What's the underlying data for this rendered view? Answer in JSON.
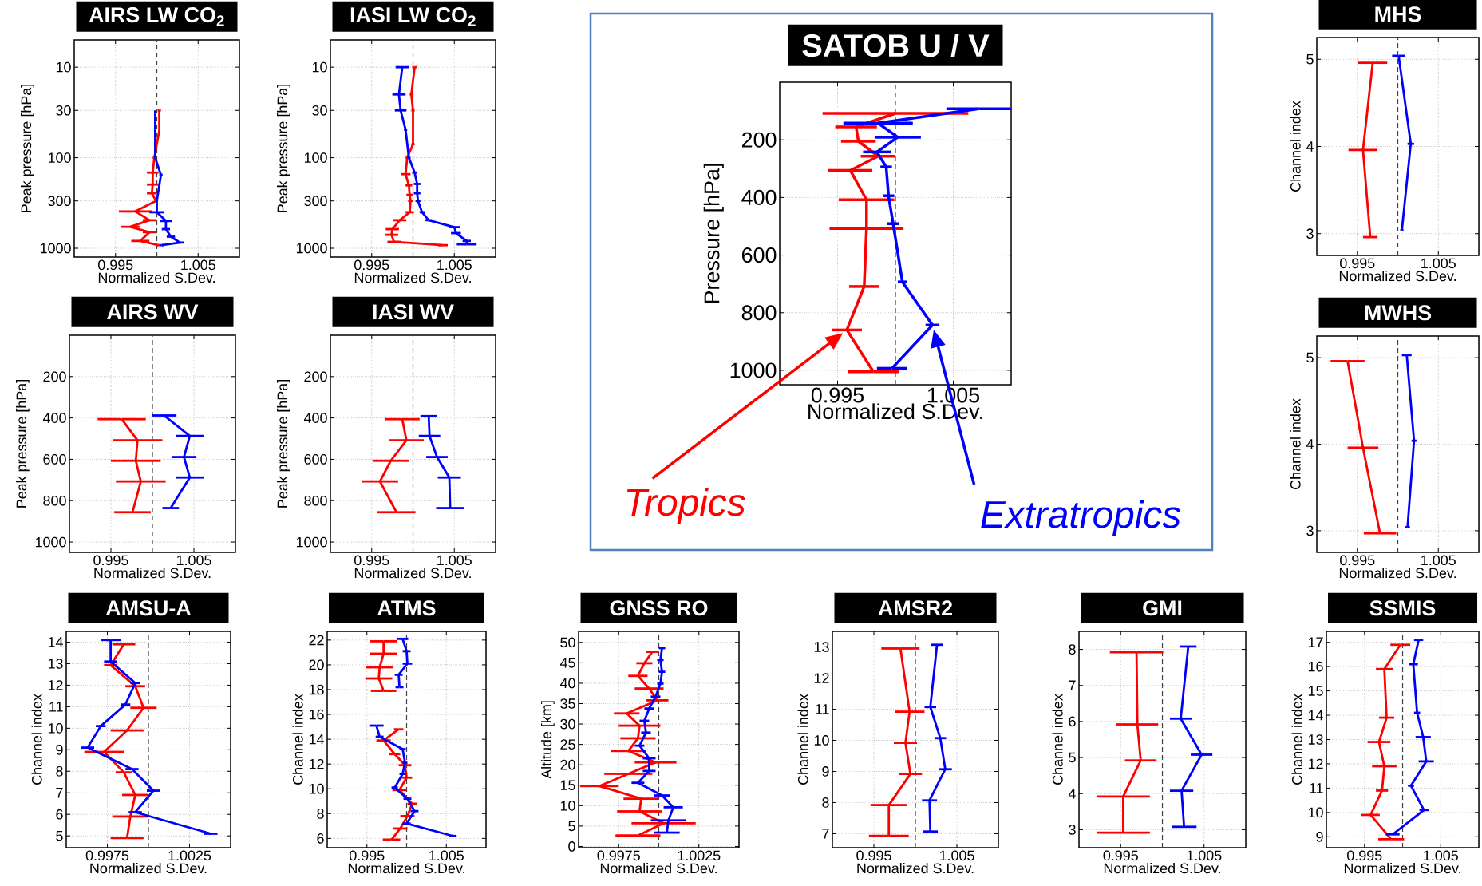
{
  "chart_data": [
    {
      "type": "line",
      "title": "AIRS LW CO$_{2}$",
      "xlabel": "Normalized S.Dev.",
      "ylabel": "Peak pressure [hPa]",
      "xlim": [
        0.99,
        1.01
      ],
      "xticks": [
        0.995,
        1.005
      ],
      "ylim": [
        1250,
        5
      ],
      "yticks": [
        10,
        30,
        100,
        300,
        1000
      ],
      "log": "y",
      "grid": true,
      "ref_lines": [
        {
          "axis": "x",
          "value": 1.0,
          "line_style": "dashed"
        }
      ],
      "series": [
        {
          "color": "#ff0000",
          "x": [
            1.0003,
            1.0003,
            0.9997,
            0.9995,
            0.9995,
            0.9994,
            0.9999,
            0.9974,
            0.9991,
            0.9968,
            0.9991,
            0.998,
            1.0002
          ],
          "values": [
            30,
            50,
            100,
            146,
            198,
            247,
            300,
            392,
            490,
            580,
            665,
            830,
            925
          ],
          "xerrors": [
            0.0002,
            null,
            0.0002,
            0.0007,
            0.0007,
            0.0006,
            null,
            0.002,
            0.0008,
            0.0011,
            0.0008,
            0.0011,
            0.0002
          ]
        },
        {
          "color": "#0000ff",
          "x": [
            0.9998,
            0.9998,
            1.0005,
            1.0,
            1.0,
            1.0011,
            1.0011,
            1.0017,
            1.0028,
            1.0006
          ],
          "values": [
            30,
            100,
            155,
            300,
            400,
            500,
            615,
            745,
            865,
            925
          ],
          "xerrors": [
            null,
            null,
            0.0002,
            null,
            0.0009,
            0.0007,
            0.0005,
            0.0005,
            0.0005,
            0.0002
          ]
        }
      ]
    },
    {
      "type": "line",
      "title": "IASI LW CO$_{2}$",
      "xlabel": "Normalized S.Dev.",
      "ylabel": "Peak pressure [hPa]",
      "xlim": [
        0.99,
        1.01
      ],
      "xticks": [
        0.995,
        1.005
      ],
      "ylim": [
        1250,
        5
      ],
      "yticks": [
        10,
        30,
        100,
        300,
        1000
      ],
      "log": "y",
      "grid": true,
      "ref_lines": [
        {
          "axis": "x",
          "value": 1.0,
          "line_style": "dashed"
        }
      ],
      "series": [
        {
          "color": "#ff0000",
          "x": [
            1.0002,
            0.9998,
            1.0,
            1.0,
            0.9993,
            0.9991,
            0.9995,
            0.9996,
            0.9997,
            0.9996,
            0.9984,
            0.9975,
            0.9974,
            0.9977,
            1.0036
          ],
          "values": [
            10,
            20,
            30,
            71,
            100,
            152,
            202,
            257,
            300,
            400,
            490,
            615,
            710,
            850,
            925
          ],
          "xerrors": [
            0.0003,
            0.0002,
            0.0002,
            0.0002,
            0.0002,
            0.0006,
            0.0004,
            0.0004,
            0.0003,
            0.0005,
            0.0008,
            0.0008,
            0.0008,
            0.0008,
            0.0006
          ]
        },
        {
          "color": "#0000ff",
          "x": [
            0.9987,
            0.9983,
            0.9985,
            0.9991,
            0.9995,
            1.0002,
            1.0005,
            1.0005,
            1.0006,
            1.0011,
            1.0019,
            1.005,
            1.0052,
            1.0065,
            1.0065
          ],
          "values": [
            10,
            20,
            30,
            49,
            100,
            146,
            195,
            247,
            300,
            400,
            490,
            585,
            680,
            830,
            905
          ],
          "xerrors": [
            0.0008,
            0.0008,
            0.0007,
            0.0002,
            0.0002,
            0.0003,
            0.0004,
            0.0004,
            0.0003,
            0.0003,
            0.0004,
            0.0007,
            0.0006,
            0.0005,
            0.0012
          ]
        }
      ]
    },
    {
      "type": "line",
      "title": "AIRS WV",
      "xlabel": "Normalized S.Dev.",
      "ylabel": "Peak pressure [hPa]",
      "xlim": [
        0.99,
        1.01
      ],
      "xticks": [
        0.995,
        1.005
      ],
      "ylim": [
        1050,
        0
      ],
      "yticks": [
        200,
        400,
        600,
        800,
        1000
      ],
      "grid": true,
      "ref_lines": [
        {
          "axis": "x",
          "value": 1.0,
          "line_style": "dashed"
        }
      ],
      "series": [
        {
          "color": "#ff0000",
          "x": [
            0.9963,
            0.9982,
            0.998,
            0.9986,
            0.9976
          ],
          "values": [
            406,
            508,
            607,
            707,
            856
          ],
          "xerrors": [
            0.0029,
            0.003,
            0.003,
            0.003,
            0.0022
          ]
        },
        {
          "color": "#0000ff",
          "x": [
            1.0014,
            1.0045,
            1.0038,
            1.0045,
            1.0022
          ],
          "values": [
            388,
            487,
            589,
            688,
            836
          ],
          "xerrors": [
            0.0015,
            0.0017,
            0.0015,
            0.0017,
            0.001
          ]
        }
      ]
    },
    {
      "type": "line",
      "title": "IASI WV",
      "xlabel": "Normalized S.Dev.",
      "ylabel": "Peak pressure [hPa]",
      "xlim": [
        0.99,
        1.01
      ],
      "xticks": [
        0.995,
        1.005
      ],
      "ylim": [
        1050,
        0
      ],
      "yticks": [
        200,
        400,
        600,
        800,
        1000
      ],
      "grid": true,
      "ref_lines": [
        {
          "axis": "x",
          "value": 1.0,
          "line_style": "dashed"
        }
      ],
      "series": [
        {
          "color": "#ff0000",
          "x": [
            0.9987,
            0.9992,
            0.9973,
            0.996,
            0.998
          ],
          "values": [
            406,
            508,
            607,
            707,
            856
          ],
          "xerrors": [
            0.0021,
            0.0021,
            0.0022,
            0.0022,
            0.0023
          ]
        },
        {
          "color": "#0000ff",
          "x": [
            1.0019,
            1.002,
            1.0029,
            1.0044,
            1.0045
          ],
          "values": [
            391,
            487,
            589,
            688,
            836
          ],
          "xerrors": [
            0.001,
            0.0013,
            0.0013,
            0.0014,
            0.0017
          ]
        }
      ]
    },
    {
      "type": "line",
      "title": "SATOB U / V",
      "xlabel": "Normalized S.Dev.",
      "ylabel": "Pressure [hPa]",
      "xlim": [
        0.99,
        1.01
      ],
      "xticks": [
        0.995,
        1.005
      ],
      "ylim": [
        1050,
        0
      ],
      "yticks": [
        200,
        400,
        600,
        800,
        1000
      ],
      "grid": true,
      "ref_lines": [
        {
          "axis": "x",
          "value": 1.0,
          "line_style": "dashed"
        }
      ],
      "series": [
        {
          "name": "Tropics",
          "color": "#ff0000",
          "x": [
            1.0,
            0.9966,
            0.9968,
            0.9985,
            0.9961,
            0.9975,
            0.9975,
            0.9973,
            0.9958,
            0.9981
          ],
          "values": [
            108,
            155,
            205,
            257,
            306,
            408,
            508,
            709,
            860,
            1005
          ],
          "xerrors": [
            0.0063,
            0.0018,
            0.0015,
            0.0015,
            0.0019,
            0.0024,
            0.0032,
            0.0013,
            0.0013,
            0.0022
          ]
        },
        {
          "name": "Extratropics",
          "color": "#0000ff",
          "x": [
            1.0072,
            0.9985,
            1.0002,
            0.9984,
            0.9992,
            0.9994,
            0.9998,
            1.0006,
            1.0032,
            0.9997
          ],
          "values": [
            92,
            142,
            191,
            242,
            294,
            394,
            491,
            693,
            843,
            993
          ],
          "xerrors": [
            0.0028,
            0.003,
            0.002,
            0.0012,
            0.0005,
            0.0005,
            0.0005,
            0.0004,
            0.0006,
            0.0013
          ]
        }
      ]
    },
    {
      "type": "line",
      "title": "MHS",
      "xlabel": "Normalized S.Dev.",
      "ylabel": "Channel index",
      "xlim": [
        0.99,
        1.01
      ],
      "xticks": [
        0.995,
        1.005
      ],
      "ylim": [
        2.75,
        5.25
      ],
      "yticks": [
        3,
        4,
        5
      ],
      "grid": true,
      "ref_lines": [
        {
          "axis": "x",
          "value": 1.0,
          "line_style": "dashed"
        }
      ],
      "series": [
        {
          "color": "#ff0000",
          "x": [
            0.9969,
            0.9957,
            0.9966
          ],
          "values": [
            4.96,
            3.96,
            2.96
          ],
          "xerrors": [
            0.0018,
            0.0018,
            0.0009
          ]
        },
        {
          "color": "#0000ff",
          "x": [
            1.0001,
            1.0016,
            1.0005
          ],
          "values": [
            5.04,
            4.03,
            3.04
          ],
          "xerrors": [
            0.0008,
            0.0004,
            0.0002
          ]
        }
      ]
    },
    {
      "type": "line",
      "title": "MWHS",
      "xlabel": "Normalized S.Dev.",
      "ylabel": "Channel index",
      "xlim": [
        0.99,
        1.01
      ],
      "xticks": [
        0.995,
        1.005
      ],
      "ylim": [
        2.75,
        5.25
      ],
      "yticks": [
        3,
        4,
        5
      ],
      "grid": true,
      "ref_lines": [
        {
          "axis": "x",
          "value": 1.0,
          "line_style": "dashed"
        }
      ],
      "series": [
        {
          "color": "#ff0000",
          "x": [
            0.9938,
            0.9957,
            0.9978
          ],
          "values": [
            4.96,
            3.96,
            2.97
          ],
          "xerrors": [
            0.0021,
            0.0019,
            0.002
          ]
        },
        {
          "color": "#0000ff",
          "x": [
            1.0011,
            1.002,
            1.0012
          ],
          "values": [
            5.03,
            4.04,
            3.04
          ],
          "xerrors": [
            0.0006,
            0.0003,
            0.0003
          ]
        }
      ]
    },
    {
      "type": "line",
      "title": "AMSU-A",
      "xlabel": "Normalized S.Dev.",
      "ylabel": "Channel index",
      "xlim": [
        0.995,
        1.005
      ],
      "xticks": [
        0.9975,
        1.0025
      ],
      "ylim": [
        4.45,
        14.5
      ],
      "yticks": [
        5,
        6,
        7,
        8,
        9,
        10,
        11,
        12,
        13,
        14
      ],
      "grid": true,
      "ref_lines": [
        {
          "axis": "x",
          "value": 1.0,
          "line_style": "dashed"
        }
      ],
      "series": [
        {
          "color": "#ff0000",
          "x": [
            0.9985,
            0.9977,
            0.9992,
            0.9997,
            0.9987,
            0.9973,
            0.9985,
            0.9992,
            0.9989,
            0.9987
          ],
          "values": [
            13.9,
            12.93,
            11.95,
            10.95,
            9.9,
            8.9,
            7.95,
            6.9,
            5.9,
            4.9
          ],
          "xerrors": [
            0.0007,
            0.0004,
            0.0006,
            0.0008,
            0.001,
            0.0012,
            0.0005,
            0.0008,
            0.0011,
            0.001
          ]
        },
        {
          "color": "#0000ff",
          "x": [
            0.9977,
            0.9977,
            0.9992,
            0.9986,
            0.9971,
            0.9963,
            0.999,
            1.0003,
            0.9992,
            1.0038
          ],
          "values": [
            14.1,
            13.1,
            12.1,
            11.1,
            10.1,
            9.1,
            8.1,
            7.1,
            6.1,
            5.1
          ],
          "xerrors": [
            0.0006,
            0.0004,
            0.0003,
            0.0003,
            0.0003,
            0.0004,
            0.0004,
            0.0004,
            0.0004,
            0.0004
          ]
        }
      ]
    },
    {
      "type": "line",
      "title": "ATMS",
      "xlabel": "Normalized S.Dev.",
      "ylabel": "Channel index",
      "xlim": [
        0.99,
        1.01
      ],
      "xticks": [
        0.995,
        1.005
      ],
      "ylim": [
        5.25,
        22.7
      ],
      "yticks": [
        6,
        8,
        10,
        12,
        14,
        16,
        18,
        20,
        22
      ],
      "grid": true,
      "ref_lines": [
        {
          "axis": "x",
          "value": 1.0,
          "line_style": "dashed"
        }
      ],
      "series": [
        {
          "color": "#ff0000",
          "x": [
            0.9971,
            0.9971,
            0.9966,
            0.9965,
            0.9971,
            null,
            0.999,
            0.9971,
            0.9985,
            0.9998,
            1.0,
            0.9991,
            1.0007,
            1.0001,
            0.9992,
            0.9981
          ],
          "values": [
            21.9,
            20.9,
            19.8,
            18.9,
            17.9,
            null,
            14.8,
            13.9,
            12.8,
            11.9,
            10.9,
            9.9,
            8.8,
            7.8,
            6.8,
            5.9
          ],
          "xerrors": [
            0.0017,
            0.0017,
            0.0017,
            0.0017,
            0.0016,
            null,
            0.0006,
            0.0009,
            0.0007,
            0.0008,
            0.0007,
            0.0009,
            0.0006,
            0.0009,
            0.0009,
            0.0011
          ]
        },
        {
          "color": "#0000ff",
          "x": [
            0.9995,
            1.0,
            1.0001,
            0.999,
            0.9991,
            null,
            0.9962,
            0.9966,
            0.9995,
            0.9998,
            0.9995,
            0.9985,
            1.0001,
            1.001,
            1.0,
            1.0058
          ],
          "values": [
            22.1,
            21.1,
            20.1,
            19.2,
            18.2,
            null,
            15.1,
            14.2,
            13.2,
            12.1,
            11.2,
            10.1,
            9.2,
            8.2,
            7.2,
            6.2
          ],
          "xerrors": [
            0.0007,
            0.0005,
            0.0006,
            0.0005,
            0.0005,
            null,
            0.0009,
            0.0005,
            0.0004,
            0.0003,
            0.0004,
            0.0004,
            0.0005,
            0.0005,
            0.0005,
            0.0005
          ]
        }
      ]
    },
    {
      "type": "line",
      "title": "GNSS RO",
      "xlabel": "Normalized S.Dev.",
      "ylabel": "Altitude [km]",
      "xlim": [
        0.995,
        1.005
      ],
      "xticks": [
        0.9975,
        1.0025
      ],
      "ylim": [
        -0.3,
        52.7
      ],
      "yticks": [
        0,
        5,
        10,
        15,
        20,
        25,
        30,
        35,
        40,
        45,
        50
      ],
      "grid": true,
      "ref_lines": [
        {
          "axis": "x",
          "value": 1.0,
          "line_style": "dashed"
        }
      ],
      "series": [
        {
          "color": "#ff0000",
          "x": [
            0.9996,
            0.9991,
            0.9987,
            0.9994,
            0.9999,
            0.998,
            0.9988,
            0.9987,
            0.9981,
            0.9998,
            0.9981,
            0.9963,
            0.9989,
            0.9988,
            1.0003,
            0.9987
          ],
          "values": [
            47.7,
            44.9,
            41.8,
            38.7,
            35.8,
            32.6,
            29.6,
            26.5,
            23.4,
            20.6,
            17.8,
            14.8,
            11.7,
            8.6,
            5.7,
            2.7
          ],
          "xerrors": [
            0.0004,
            0.0005,
            0.0006,
            0.0009,
            0.0007,
            0.0008,
            0.0013,
            0.0011,
            0.0011,
            0.0013,
            0.0015,
            0.0012,
            0.0011,
            0.0014,
            0.002,
            0.0014
          ]
        },
        {
          "color": "#0000ff",
          "x": [
            1.0002,
            1.0001,
            1.0002,
            1.0001,
            0.9998,
            0.9994,
            0.9991,
            0.9992,
            0.9988,
            0.9994,
            0.9994,
            0.9987,
            1.0002,
            1.0009,
            1.0006,
            1.0005
          ],
          "values": [
            48.6,
            45.7,
            42.8,
            39.9,
            36.7,
            33.8,
            30.8,
            27.9,
            24.7,
            21.6,
            18.5,
            15.6,
            12.5,
            9.6,
            6.4,
            3.4
          ],
          "xerrors": [
            0.0002,
            0.0002,
            0.0002,
            0.0002,
            0.0003,
            0.0003,
            0.0003,
            0.0003,
            0.0003,
            0.0004,
            0.0004,
            0.0004,
            0.0005,
            0.0006,
            0.0011,
            0.0008
          ]
        }
      ]
    },
    {
      "type": "line",
      "title": "AMSR2",
      "xlabel": "Normalized S.Dev.",
      "ylabel": "Channel index",
      "xlim": [
        0.99,
        1.01
      ],
      "xticks": [
        0.995,
        1.005
      ],
      "ylim": [
        6.55,
        13.5
      ],
      "yticks": [
        7,
        8,
        9,
        10,
        11,
        12,
        13
      ],
      "grid": true,
      "ref_lines": [
        {
          "axis": "x",
          "value": 1.0,
          "line_style": "dashed"
        }
      ],
      "series": [
        {
          "color": "#ff0000",
          "x": [
            0.9982,
            0.9993,
            0.9988,
            0.9994,
            0.9968,
            0.9968
          ],
          "values": [
            12.95,
            10.92,
            9.92,
            8.92,
            7.92,
            6.93
          ],
          "xerrors": [
            0.0023,
            0.0018,
            0.0014,
            0.0014,
            0.0022,
            0.0024
          ]
        },
        {
          "color": "#0000ff",
          "x": [
            1.0026,
            1.0018,
            1.003,
            1.0036,
            1.0017,
            1.0018
          ],
          "values": [
            13.07,
            11.07,
            10.07,
            9.07,
            8.07,
            7.07
          ],
          "xerrors": [
            0.0007,
            0.0007,
            0.0007,
            0.0008,
            0.0009,
            0.0009
          ]
        }
      ]
    },
    {
      "type": "line",
      "title": "GMI",
      "xlabel": "Normalized S.Dev.",
      "ylabel": "Channel index",
      "xlim": [
        0.99,
        1.01
      ],
      "xticks": [
        0.995,
        1.005
      ],
      "ylim": [
        2.5,
        8.5
      ],
      "yticks": [
        3,
        4,
        5,
        6,
        7,
        8
      ],
      "grid": true,
      "ref_lines": [
        {
          "axis": "x",
          "value": 1.0,
          "line_style": "dashed"
        }
      ],
      "series": [
        {
          "color": "#ff0000",
          "x": [
            0.9969,
            0.997,
            0.9974,
            0.9953,
            0.9953
          ],
          "values": [
            7.92,
            5.92,
            4.92,
            3.92,
            2.92
          ],
          "xerrors": [
            0.0032,
            0.0025,
            0.0019,
            0.0032,
            0.0032
          ]
        },
        {
          "color": "#0000ff",
          "x": [
            1.0031,
            1.0022,
            1.0047,
            1.0023,
            1.0026
          ],
          "values": [
            8.08,
            6.08,
            5.08,
            4.08,
            3.08
          ],
          "xerrors": [
            0.001,
            0.0013,
            0.0013,
            0.0014,
            0.0015
          ]
        }
      ]
    },
    {
      "type": "line",
      "title": "SSMIS",
      "xlabel": "Normalized S.Dev.",
      "ylabel": "Channel index",
      "xlim": [
        0.99,
        1.01
      ],
      "xticks": [
        0.995,
        1.005
      ],
      "ylim": [
        8.55,
        17.45
      ],
      "yticks": [
        9,
        10,
        11,
        12,
        13,
        14,
        15,
        16,
        17
      ],
      "grid": true,
      "ref_lines": [
        {
          "axis": "x",
          "value": 1.0,
          "line_style": "dashed"
        }
      ],
      "series": [
        {
          "color": "#ff0000",
          "x": [
            0.9997,
            0.9976,
            0.9979,
            0.9969,
            0.9976,
            0.9973,
            0.9958,
            0.9985
          ],
          "values": [
            16.9,
            15.9,
            13.9,
            12.9,
            11.9,
            10.9,
            9.9,
            8.9
          ],
          "xerrors": [
            0.0013,
            0.0011,
            0.001,
            0.0015,
            0.0016,
            0.0008,
            0.0012,
            0.0017
          ]
        },
        {
          "color": "#0000ff",
          "x": [
            1.0021,
            1.0014,
            1.0019,
            1.0027,
            1.0031,
            1.0011,
            1.0028,
            0.9987
          ],
          "values": [
            17.1,
            16.1,
            14.1,
            13.1,
            12.1,
            11.1,
            10.1,
            9.1
          ],
          "xerrors": [
            0.0006,
            0.0006,
            0.0004,
            0.001,
            0.001,
            0.0004,
            0.0006,
            0.0009
          ]
        }
      ]
    }
  ]
}
